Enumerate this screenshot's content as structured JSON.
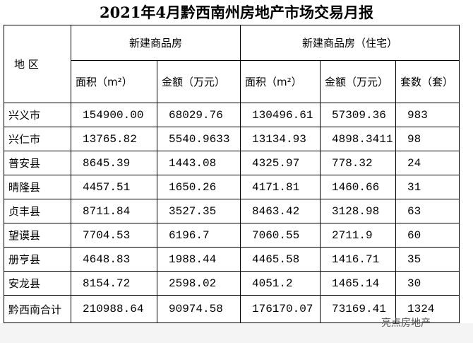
{
  "header": {
    "title": "2021年4月黔西南州房地产市场交易月报"
  },
  "table": {
    "region_header": "地  区",
    "group_headers": [
      "新建商品房",
      "新建商品房（住宅）"
    ],
    "sub_headers": [
      "面积（m²）",
      "金额（万元）",
      "面积（m²）",
      "金额（万元）",
      "套数（套）"
    ],
    "rows": [
      [
        "兴义市",
        "154900.00",
        "68029.76",
        "130496.61",
        "57309.36",
        "983"
      ],
      [
        "兴仁市",
        "13765.82",
        "5540.9633",
        "13134.93",
        "4898.3411",
        "98"
      ],
      [
        "普安县",
        "8645.39",
        "1443.08",
        "4325.97",
        "778.32",
        "24"
      ],
      [
        "晴隆县",
        "4457.51",
        "1650.26",
        "4171.81",
        "1460.66",
        "31"
      ],
      [
        "贞丰县",
        "8711.84",
        "3527.35",
        "8463.42",
        "3128.98",
        "63"
      ],
      [
        "望谟县",
        "7704.53",
        "6196.7",
        "7060.55",
        "2711.9",
        "60"
      ],
      [
        "册亨县",
        "4648.83",
        "1988.44",
        "4465.58",
        "1416.71",
        "35"
      ],
      [
        "安龙县",
        "8154.72",
        "2598.02",
        "4051.2",
        "1465.14",
        "30"
      ],
      [
        "黔西南合计",
        "210988.64",
        "90974.58",
        "176170.07",
        "73169.41",
        "1324"
      ]
    ]
  },
  "watermark": "亮点房地产"
}
